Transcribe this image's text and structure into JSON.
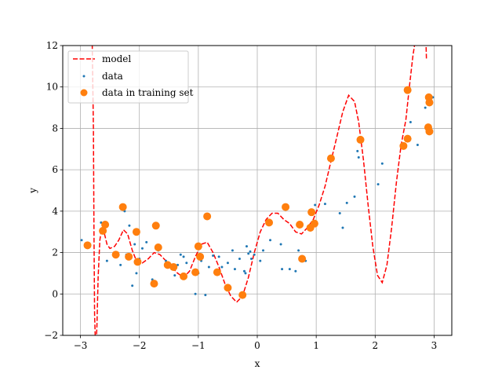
{
  "chart_data": {
    "type": "scatter",
    "title": "",
    "xlabel": "x",
    "ylabel": "y",
    "xlim": [
      -3.3,
      3.3
    ],
    "ylim": [
      -2,
      12
    ],
    "grid": true,
    "legend_position": "top-left",
    "x_ticks": [
      -3,
      -2,
      -1,
      0,
      1,
      2,
      3
    ],
    "y_ticks": [
      -2,
      0,
      2,
      4,
      6,
      8,
      10,
      12
    ],
    "x_tick_labels": [
      "−3",
      "−2",
      "−1",
      "0",
      "1",
      "2",
      "3"
    ],
    "y_tick_labels": [
      "−2",
      "0",
      "2",
      "4",
      "6",
      "8",
      "10",
      "12"
    ],
    "series": [
      {
        "name": "model",
        "kind": "line",
        "style": "dashed",
        "color": "#ff0000",
        "points": [
          [
            -2.82,
            14
          ],
          [
            -2.8,
            12.0
          ],
          [
            -2.78,
            8.0
          ],
          [
            -2.77,
            3.0
          ],
          [
            -2.76,
            -1.0
          ],
          [
            -2.74,
            -3.0
          ],
          [
            -2.72,
            -1.5
          ],
          [
            -2.7,
            0.8
          ],
          [
            -2.67,
            2.6
          ],
          [
            -2.64,
            3.2
          ],
          [
            -2.6,
            3.0
          ],
          [
            -2.55,
            2.4
          ],
          [
            -2.5,
            2.2
          ],
          [
            -2.42,
            2.3
          ],
          [
            -2.35,
            2.6
          ],
          [
            -2.27,
            3.1
          ],
          [
            -2.2,
            2.9
          ],
          [
            -2.12,
            2.1
          ],
          [
            -2.05,
            1.6
          ],
          [
            -1.95,
            1.5
          ],
          [
            -1.85,
            1.7
          ],
          [
            -1.75,
            2.0
          ],
          [
            -1.65,
            1.9
          ],
          [
            -1.55,
            1.6
          ],
          [
            -1.45,
            1.3
          ],
          [
            -1.35,
            1.0
          ],
          [
            -1.25,
            0.8
          ],
          [
            -1.15,
            1.1
          ],
          [
            -1.05,
            1.8
          ],
          [
            -0.95,
            2.4
          ],
          [
            -0.85,
            2.5
          ],
          [
            -0.75,
            2.0
          ],
          [
            -0.65,
            1.3
          ],
          [
            -0.55,
            0.5
          ],
          [
            -0.45,
            -0.1
          ],
          [
            -0.35,
            -0.4
          ],
          [
            -0.25,
            -0.1
          ],
          [
            -0.15,
            0.8
          ],
          [
            -0.05,
            2.0
          ],
          [
            0.05,
            3.0
          ],
          [
            0.15,
            3.6
          ],
          [
            0.25,
            3.9
          ],
          [
            0.35,
            3.9
          ],
          [
            0.45,
            3.6
          ],
          [
            0.55,
            3.4
          ],
          [
            0.65,
            3.0
          ],
          [
            0.75,
            2.9
          ],
          [
            0.85,
            3.2
          ],
          [
            0.95,
            3.6
          ],
          [
            1.05,
            4.3
          ],
          [
            1.15,
            5.2
          ],
          [
            1.25,
            6.4
          ],
          [
            1.35,
            7.6
          ],
          [
            1.45,
            8.8
          ],
          [
            1.55,
            9.6
          ],
          [
            1.65,
            9.3
          ],
          [
            1.72,
            8.3
          ],
          [
            1.8,
            6.5
          ],
          [
            1.88,
            4.3
          ],
          [
            1.96,
            2.3
          ],
          [
            2.04,
            0.9
          ],
          [
            2.12,
            0.55
          ],
          [
            2.2,
            1.4
          ],
          [
            2.28,
            3.2
          ],
          [
            2.36,
            5.4
          ],
          [
            2.44,
            7.2
          ],
          [
            2.52,
            8.4
          ],
          [
            2.58,
            10.0
          ],
          [
            2.64,
            11.5
          ],
          [
            2.7,
            12.6
          ],
          [
            2.8,
            12.8
          ],
          [
            2.86,
            12.4
          ],
          [
            2.87,
            11.3
          ]
        ]
      },
      {
        "name": "data",
        "kind": "scatter",
        "marker_size": "small",
        "color": "#1f77b4",
        "points": [
          [
            -2.98,
            2.6
          ],
          [
            -2.85,
            2.4
          ],
          [
            -2.65,
            3.45
          ],
          [
            -2.55,
            1.6
          ],
          [
            -2.4,
            2.0
          ],
          [
            -2.32,
            1.4
          ],
          [
            -2.25,
            4.0
          ],
          [
            -2.22,
            1.9
          ],
          [
            -2.17,
            3.3
          ],
          [
            -2.12,
            0.4
          ],
          [
            -2.08,
            2.4
          ],
          [
            -2.05,
            1.0
          ],
          [
            -2.0,
            1.7
          ],
          [
            -1.95,
            2.2
          ],
          [
            -1.88,
            2.5
          ],
          [
            -1.78,
            0.7
          ],
          [
            -1.68,
            2.1
          ],
          [
            -1.55,
            1.6
          ],
          [
            -1.5,
            1.4
          ],
          [
            -1.45,
            1.2
          ],
          [
            -1.4,
            0.9
          ],
          [
            -1.35,
            1.4
          ],
          [
            -1.3,
            1.9
          ],
          [
            -1.25,
            1.8
          ],
          [
            -1.2,
            1.5
          ],
          [
            -1.05,
            0.0
          ],
          [
            -1.0,
            1.0
          ],
          [
            -0.95,
            1.6
          ],
          [
            -0.88,
            -0.05
          ],
          [
            -0.82,
            1.3
          ],
          [
            -0.75,
            1.85
          ],
          [
            -0.65,
            1.8
          ],
          [
            -0.6,
            1.3
          ],
          [
            -0.5,
            1.5
          ],
          [
            -0.42,
            2.1
          ],
          [
            -0.38,
            1.2
          ],
          [
            -0.3,
            1.7
          ],
          [
            -0.22,
            1.1
          ],
          [
            -0.2,
            1.0
          ],
          [
            -0.18,
            2.3
          ],
          [
            -0.15,
            1.95
          ],
          [
            -0.12,
            2.05
          ],
          [
            -0.1,
            1.7
          ],
          [
            -0.05,
            1.9
          ],
          [
            0.05,
            1.6
          ],
          [
            0.1,
            2.1
          ],
          [
            0.22,
            2.6
          ],
          [
            0.4,
            2.4
          ],
          [
            0.42,
            1.2
          ],
          [
            0.55,
            1.2
          ],
          [
            0.65,
            1.1
          ],
          [
            0.7,
            2.1
          ],
          [
            0.82,
            1.6
          ],
          [
            0.98,
            4.3
          ],
          [
            1.15,
            4.35
          ],
          [
            1.25,
            6.5
          ],
          [
            1.4,
            3.9
          ],
          [
            1.45,
            3.2
          ],
          [
            1.52,
            4.4
          ],
          [
            1.65,
            4.7
          ],
          [
            1.7,
            6.9
          ],
          [
            1.72,
            6.6
          ],
          [
            2.05,
            5.3
          ],
          [
            2.12,
            6.3
          ],
          [
            2.45,
            7.2
          ],
          [
            2.55,
            7.5
          ],
          [
            2.6,
            8.3
          ],
          [
            2.72,
            7.2
          ],
          [
            2.85,
            9.0
          ],
          [
            2.92,
            8.0
          ],
          [
            2.98,
            9.5
          ]
        ]
      },
      {
        "name": "data in training set",
        "kind": "scatter",
        "marker_size": "large",
        "color": "#ff7f0e",
        "points": [
          [
            -2.88,
            2.35
          ],
          [
            -2.62,
            3.05
          ],
          [
            -2.58,
            3.35
          ],
          [
            -2.4,
            1.9
          ],
          [
            -2.28,
            4.2
          ],
          [
            -2.18,
            1.8
          ],
          [
            -2.05,
            3.0
          ],
          [
            -2.03,
            1.55
          ],
          [
            -1.75,
            0.5
          ],
          [
            -1.72,
            3.3
          ],
          [
            -1.68,
            2.25
          ],
          [
            -1.52,
            1.4
          ],
          [
            -1.42,
            1.3
          ],
          [
            -1.25,
            0.85
          ],
          [
            -1.05,
            1.05
          ],
          [
            -1.0,
            2.3
          ],
          [
            -0.97,
            1.8
          ],
          [
            -0.85,
            3.75
          ],
          [
            -0.68,
            1.05
          ],
          [
            -0.5,
            0.3
          ],
          [
            -0.25,
            -0.05
          ],
          [
            0.2,
            3.45
          ],
          [
            0.48,
            4.2
          ],
          [
            0.72,
            3.35
          ],
          [
            0.76,
            1.7
          ],
          [
            0.9,
            3.2
          ],
          [
            0.92,
            3.95
          ],
          [
            0.97,
            3.4
          ],
          [
            1.25,
            6.55
          ],
          [
            1.75,
            7.45
          ],
          [
            2.48,
            7.15
          ],
          [
            2.55,
            7.5
          ],
          [
            2.55,
            9.85
          ],
          [
            2.9,
            8.05
          ],
          [
            2.92,
            7.85
          ],
          [
            2.92,
            9.25
          ],
          [
            2.91,
            9.5
          ]
        ]
      }
    ]
  }
}
